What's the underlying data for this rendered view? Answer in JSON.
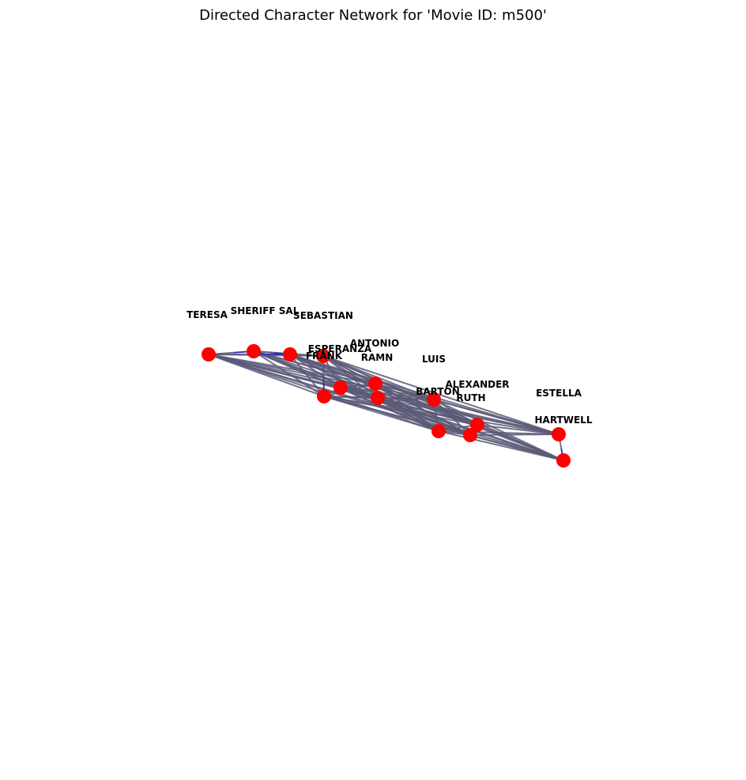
{
  "title": "Directed Character Network for 'Movie ID: m500'",
  "colors": {
    "node": "#ff0000",
    "edge": "#5a5a78",
    "arrow": "#2a2ac8",
    "background": "#ffffff"
  },
  "graph": {
    "directed": true,
    "nodes": [
      {
        "id": "TERESA"
      },
      {
        "id": "SHERIFF SAL"
      },
      {
        "id": "SEBASTIAN"
      },
      {
        "id": "FRANK"
      },
      {
        "id": "ESPERANZA"
      },
      {
        "id": "ANTONIO"
      },
      {
        "id": "RAMN"
      },
      {
        "id": "LUIS"
      },
      {
        "id": "ALEXANDER"
      },
      {
        "id": "BARTON"
      },
      {
        "id": "RUTH"
      },
      {
        "id": "ESTELLA"
      },
      {
        "id": "HARTWELL"
      },
      {
        "id": "N14"
      },
      {
        "id": "N15"
      },
      {
        "id": "N16"
      }
    ],
    "labels": [
      "TERESA",
      "SHERIFF SAL",
      "SEBASTIAN",
      "FRANK",
      "ESPERANZA",
      "ANTONIO",
      "RAMN",
      "LUIS",
      "ALEXANDER",
      "BARTON",
      "RUTH",
      "ESTELLA",
      "HARTWELL"
    ]
  }
}
